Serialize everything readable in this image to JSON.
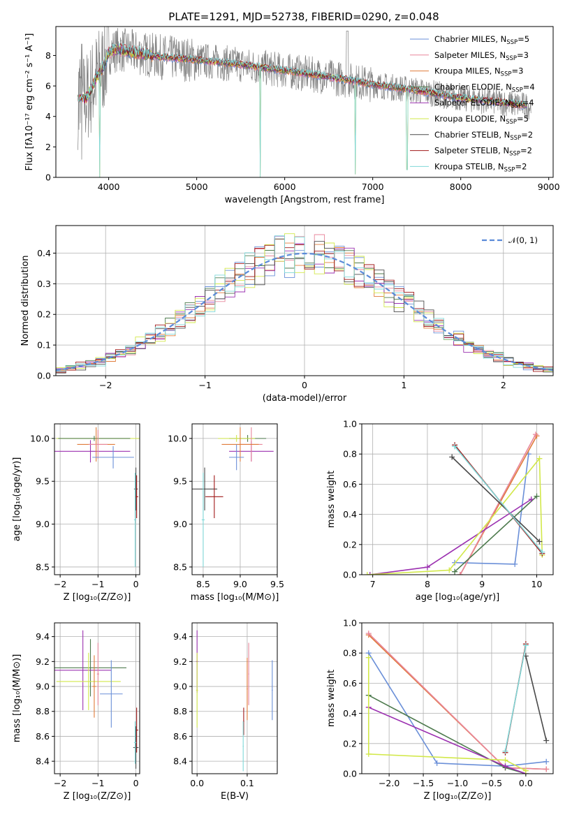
{
  "figure_title": "PLATE=1291, MJD=52738, FIBERID=0290, z=0.048",
  "colors": {
    "Chabrier MILES": "#6a8fd8",
    "Salpeter MILES": "#e8869b",
    "Kroupa MILES": "#e07b39",
    "Chabrier ELODIE": "#4d7a4d",
    "Salpeter ELODIE": "#9b30b0",
    "Kroupa ELODIE": "#d2e84a",
    "Chabrier STELIB": "#4a4a4a",
    "Salpeter STELIB": "#a01818",
    "Kroupa STELIB": "#7fd8d8",
    "data": "#808080",
    "normal_curve": "#5b8bd9"
  },
  "chart_data": [
    {
      "id": "spectrum",
      "type": "line",
      "title": "PLATE=1291, MJD=52738, FIBERID=0290, z=0.048",
      "xlabel": "wavelength [Angstrom, rest frame]",
      "ylabel": "Flux [fλ10⁻¹⁷ erg cm⁻² s⁻¹ A⁻¹]",
      "xlim": [
        3400,
        9050
      ],
      "ylim": [
        0,
        9.9
      ],
      "xticks": [
        "4000",
        "5000",
        "6000",
        "7000",
        "8000",
        "9000"
      ],
      "yticks": [
        "0",
        "2",
        "4",
        "6",
        "8"
      ],
      "grid": false,
      "legend": "upper right",
      "data_range": [
        3650,
        8800
      ],
      "model_range": [
        3650,
        8750
      ],
      "legend_entries": [
        {
          "name": "Chabrier MILES, N",
          "sub": "SSP",
          "suffix": "=5"
        },
        {
          "name": "Salpeter MILES, N",
          "sub": "SSP",
          "suffix": "=3"
        },
        {
          "name": "Kroupa MILES, N",
          "sub": "SSP",
          "suffix": "=3"
        },
        {
          "name": "Chabrier ELODIE, N",
          "sub": "SSP",
          "suffix": "=4"
        },
        {
          "name": "Salpeter ELODIE, N",
          "sub": "SSP",
          "suffix": "=4"
        },
        {
          "name": "Kroupa ELODIE, N",
          "sub": "SSP",
          "suffix": "=5"
        },
        {
          "name": "Chabrier STELIB, N",
          "sub": "SSP",
          "suffix": "=2"
        },
        {
          "name": "Salpeter STELIB, N",
          "sub": "SSP",
          "suffix": "=2"
        },
        {
          "name": "Kroupa STELIB, N",
          "sub": "SSP",
          "suffix": "=2"
        }
      ],
      "continuum": [
        [
          3650,
          5.0
        ],
        [
          3750,
          5.2
        ],
        [
          3850,
          6.4
        ],
        [
          3950,
          7.4
        ],
        [
          4000,
          8.2
        ],
        [
          4100,
          8.4
        ],
        [
          4300,
          8.2
        ],
        [
          4600,
          7.9
        ],
        [
          5000,
          7.7
        ],
        [
          5500,
          7.4
        ],
        [
          6000,
          7.0
        ],
        [
          6500,
          6.6
        ],
        [
          7000,
          6.1
        ],
        [
          7500,
          5.7
        ],
        [
          8000,
          5.2
        ],
        [
          8500,
          4.9
        ],
        [
          8750,
          4.7
        ]
      ],
      "model_dips": [
        {
          "x": 3900,
          "to": 0.0
        },
        {
          "x": 5725,
          "to": 0.0
        },
        {
          "x": 6800,
          "to": 0.2
        },
        {
          "x": 7390,
          "to": 0.5
        }
      ]
    },
    {
      "id": "residuals",
      "type": "step",
      "xlabel": "(data-model)/error",
      "ylabel": "Normed distribution",
      "xlim": [
        -2.5,
        2.5
      ],
      "ylim": [
        0,
        0.49
      ],
      "xticks": [
        "−2",
        "−1",
        "0",
        "1",
        "2"
      ],
      "yticks": [
        "0.0",
        "0.1",
        "0.2",
        "0.3",
        "0.4"
      ],
      "grid": true,
      "legend": "upper right",
      "legend_label": "𝒩(0, 1)",
      "bin_width": 0.1
    },
    {
      "id": "age-vs-Z",
      "type": "errorbar",
      "xlabel": "Z [log₁₀(Z/Z⊙)]",
      "ylabel": "age  [log₁₀(age/yr)]",
      "xlim": [
        -2.15,
        0.1
      ],
      "ylim": [
        8.41,
        10.17
      ],
      "xticks": [
        "−2",
        "−1",
        "0"
      ],
      "yticks": [
        "8.5",
        "9.0",
        "9.5",
        "10.0"
      ],
      "grid": true,
      "points": [
        {
          "model": "Kroupa ELODIE",
          "x": -1.0,
          "xerr": 1.1,
          "y": 10.0,
          "yerr": 0.03
        },
        {
          "model": "Chabrier ELODIE",
          "x": -1.1,
          "xerr": 0.95,
          "y": 10.0,
          "yerr": 0.03
        },
        {
          "model": "Salpeter ELODIE",
          "x": -1.2,
          "xerr": 1.05,
          "y": 9.85,
          "yerr": 0.13
        },
        {
          "model": "Kroupa MILES",
          "x": -1.05,
          "xerr": 0.5,
          "y": 9.93,
          "yerr": 0.2
        },
        {
          "model": "Salpeter MILES",
          "x": -1.0,
          "xerr": 0.25,
          "y": 9.93,
          "yerr": 0.17
        },
        {
          "model": "Chabrier MILES",
          "x": -0.6,
          "xerr": 0.55,
          "y": 9.78,
          "yerr": 0.13
        },
        {
          "model": "Chabrier STELIB",
          "x": 0.0,
          "xerr": 0.05,
          "y": 9.41,
          "yerr": 0.25
        },
        {
          "model": "Salpeter STELIB",
          "x": 0.02,
          "xerr": 0.04,
          "y": 9.32,
          "yerr": 0.25
        },
        {
          "model": "Kroupa STELIB",
          "x": -0.02,
          "xerr": 0.03,
          "y": 9.05,
          "yerr": 0.55
        }
      ]
    },
    {
      "id": "age-vs-mass",
      "type": "errorbar",
      "xlabel": "mass [log₁₀(M/M⊙)]",
      "ylabel": "",
      "xlim": [
        8.35,
        9.5
      ],
      "ylim": [
        8.41,
        10.17
      ],
      "xticks": [
        "8.5",
        "9.0",
        "9.5"
      ],
      "yticks": [
        "8.5",
        "9.0",
        "9.5",
        "10.0"
      ],
      "grid": true,
      "points": [
        {
          "model": "Chabrier ELODIE",
          "x": 9.1,
          "xerr": 0.25,
          "y": 10.0,
          "yerr": 0.04
        },
        {
          "model": "Kroupa ELODIE",
          "x": 8.95,
          "xerr": 0.25,
          "y": 10.0,
          "yerr": 0.04
        },
        {
          "model": "Salpeter ELODIE",
          "x": 9.15,
          "xerr": 0.3,
          "y": 9.85,
          "yerr": 0.12
        },
        {
          "model": "Salpeter MILES",
          "x": 9.15,
          "xerr": 0.15,
          "y": 9.93,
          "yerr": 0.2
        },
        {
          "model": "Kroupa MILES",
          "x": 9.0,
          "xerr": 0.25,
          "y": 9.93,
          "yerr": 0.2
        },
        {
          "model": "Chabrier MILES",
          "x": 8.95,
          "xerr": 0.1,
          "y": 9.78,
          "yerr": 0.15
        },
        {
          "model": "Chabrier STELIB",
          "x": 8.52,
          "xerr": 0.17,
          "y": 9.41,
          "yerr": 0.25
        },
        {
          "model": "Salpeter STELIB",
          "x": 8.65,
          "xerr": 0.12,
          "y": 9.32,
          "yerr": 0.25
        },
        {
          "model": "Kroupa STELIB",
          "x": 8.5,
          "xerr": 0.02,
          "y": 9.05,
          "yerr": 0.55
        }
      ]
    },
    {
      "id": "weight-vs-age",
      "type": "line",
      "xlabel": "age  [log₁₀(age/yr)]",
      "ylabel": "mass weight",
      "xlim": [
        6.8,
        10.3
      ],
      "ylim": [
        0,
        1.0
      ],
      "xticks": [
        "7",
        "8",
        "9",
        "10"
      ],
      "yticks": [
        "0.0",
        "0.2",
        "0.4",
        "0.6",
        "0.8",
        "1.0"
      ],
      "grid": true,
      "series": [
        {
          "model": "Chabrier MILES",
          "points": [
            [
              8.5,
              0.08
            ],
            [
              9.6,
              0.07
            ],
            [
              9.85,
              0.8
            ]
          ]
        },
        {
          "model": "Kroupa MILES",
          "points": [
            [
              8.6,
              0.0
            ],
            [
              10.0,
              0.92
            ]
          ]
        },
        {
          "model": "Salpeter MILES",
          "points": [
            [
              8.6,
              0.0
            ],
            [
              9.98,
              0.93
            ]
          ]
        },
        {
          "model": "Chabrier ELODIE",
          "points": [
            [
              8.5,
              0.02
            ],
            [
              10.0,
              0.52
            ]
          ]
        },
        {
          "model": "Salpeter ELODIE",
          "points": [
            [
              6.95,
              0.0
            ],
            [
              8.0,
              0.05
            ],
            [
              9.9,
              0.5
            ]
          ]
        },
        {
          "model": "Kroupa ELODIE",
          "points": [
            [
              6.9,
              0.0
            ],
            [
              8.4,
              0.03
            ],
            [
              10.05,
              0.77
            ],
            [
              10.1,
              0.13
            ]
          ]
        },
        {
          "model": "Chabrier STELIB",
          "points": [
            [
              8.45,
              0.78
            ],
            [
              10.05,
              0.22
            ]
          ]
        },
        {
          "model": "Salpeter STELIB",
          "points": [
            [
              8.5,
              0.86
            ],
            [
              10.1,
              0.14
            ]
          ]
        },
        {
          "model": "Kroupa STELIB",
          "points": [
            [
              8.5,
              0.85
            ],
            [
              10.1,
              0.15
            ]
          ]
        }
      ]
    },
    {
      "id": "mass-vs-Z",
      "type": "errorbar",
      "xlabel": "Z [log₁₀(Z/Z⊙)]",
      "ylabel": "mass [log₁₀(M/M⊙)]",
      "xlim": [
        -2.15,
        0.1
      ],
      "ylim": [
        8.3,
        9.51
      ],
      "xticks": [
        "−2",
        "−1",
        "0"
      ],
      "yticks": [
        "8.4",
        "8.6",
        "8.8",
        "9.0",
        "9.2",
        "9.4"
      ],
      "grid": true,
      "points": [
        {
          "model": "Chabrier ELODIE",
          "x": -1.2,
          "xerr": 0.95,
          "y": 9.15,
          "yerr": 0.23
        },
        {
          "model": "Salpeter ELODIE",
          "x": -1.4,
          "xerr": 0.75,
          "y": 9.13,
          "yerr": 0.32
        },
        {
          "model": "Kroupa ELODIE",
          "x": -1.25,
          "xerr": 0.85,
          "y": 9.04,
          "yerr": 0.23
        },
        {
          "model": "Salpeter MILES",
          "x": -1.0,
          "xerr": 0.03,
          "y": 9.1,
          "yerr": 0.25
        },
        {
          "model": "Kroupa MILES",
          "x": -1.1,
          "xerr": 0.05,
          "y": 9.0,
          "yerr": 0.25
        },
        {
          "model": "Chabrier MILES",
          "x": -0.65,
          "xerr": 0.3,
          "y": 8.94,
          "yerr": 0.27
        },
        {
          "model": "Salpeter STELIB",
          "x": 0.02,
          "xerr": 0.04,
          "y": 8.65,
          "yerr": 0.18
        },
        {
          "model": "Chabrier STELIB",
          "x": 0.0,
          "xerr": 0.07,
          "y": 8.51,
          "yerr": 0.17
        },
        {
          "model": "Kroupa STELIB",
          "x": -0.02,
          "xerr": 0.03,
          "y": 8.55,
          "yerr": 0.17
        }
      ]
    },
    {
      "id": "mass-vs-EBV",
      "type": "errorbar",
      "xlabel": "E(B-V)",
      "ylabel": "",
      "xlim": [
        -0.01,
        0.16
      ],
      "ylim": [
        8.3,
        9.51
      ],
      "xticks": [
        "0.0",
        "0.1"
      ],
      "yticks": [
        "8.4",
        "8.6",
        "8.8",
        "9.0",
        "9.2",
        "9.4"
      ],
      "grid": true,
      "points": [
        {
          "model": "Salpeter ELODIE",
          "x": 0.0,
          "xerr": 0.002,
          "y": 9.2,
          "yerr": 0.25
        },
        {
          "model": "Kroupa ELODIE",
          "x": 0.0,
          "xerr": 0.002,
          "y": 8.97,
          "yerr": 0.3
        },
        {
          "model": "Salpeter MILES",
          "x": 0.103,
          "xerr": 0.001,
          "y": 9.1,
          "yerr": 0.25
        },
        {
          "model": "Kroupa MILES",
          "x": 0.1,
          "xerr": 0.001,
          "y": 8.98,
          "yerr": 0.25
        },
        {
          "model": "Chabrier MILES",
          "x": 0.15,
          "xerr": 0.001,
          "y": 8.97,
          "yerr": 0.24
        },
        {
          "model": "Salpeter STELIB",
          "x": 0.093,
          "xerr": 0.001,
          "y": 8.72,
          "yerr": 0.11
        },
        {
          "model": "Kroupa STELIB",
          "x": 0.092,
          "xerr": 0.001,
          "y": 8.52,
          "yerr": 0.2
        }
      ]
    },
    {
      "id": "weight-vs-Z",
      "type": "line",
      "xlabel": "Z [log₁₀(Z/Z⊙)]",
      "ylabel": "mass weight",
      "xlim": [
        -2.4,
        0.4
      ],
      "ylim": [
        0,
        1.0
      ],
      "xticks": [
        "−2.0",
        "−1.5",
        "−1.0",
        "−0.5",
        "0.0"
      ],
      "yticks": [
        "0.0",
        "0.2",
        "0.4",
        "0.6",
        "0.8",
        "1.0"
      ],
      "grid": true,
      "series": [
        {
          "model": "Chabrier MILES",
          "points": [
            [
              -2.3,
              0.8
            ],
            [
              -1.3,
              0.07
            ],
            [
              -0.3,
              0.05
            ],
            [
              0.3,
              0.08
            ]
          ]
        },
        {
          "model": "Kroupa MILES",
          "points": [
            [
              -2.3,
              0.92
            ],
            [
              -0.3,
              0.04
            ],
            [
              0.3,
              0.03
            ]
          ]
        },
        {
          "model": "Salpeter MILES",
          "points": [
            [
              -2.3,
              0.93
            ],
            [
              -0.3,
              0.04
            ],
            [
              0.3,
              0.03
            ]
          ]
        },
        {
          "model": "Chabrier ELODIE",
          "points": [
            [
              -2.3,
              0.52
            ],
            [
              -0.3,
              0.04
            ],
            [
              0.0,
              0.0
            ]
          ]
        },
        {
          "model": "Salpeter ELODIE",
          "points": [
            [
              -2.3,
              0.44
            ],
            [
              -0.3,
              0.05
            ],
            [
              0.0,
              0.0
            ]
          ]
        },
        {
          "model": "Kroupa ELODIE",
          "points": [
            [
              -2.3,
              0.77
            ],
            [
              -2.3,
              0.13
            ],
            [
              -0.3,
              0.09
            ],
            [
              0.0,
              0.02
            ]
          ]
        },
        {
          "model": "Chabrier STELIB",
          "points": [
            [
              0.0,
              0.78
            ],
            [
              0.3,
              0.22
            ]
          ]
        },
        {
          "model": "Salpeter STELIB",
          "points": [
            [
              -0.3,
              0.14
            ],
            [
              0.0,
              0.86
            ]
          ]
        },
        {
          "model": "Kroupa STELIB",
          "points": [
            [
              -0.3,
              0.15
            ],
            [
              0.0,
              0.85
            ]
          ]
        }
      ]
    }
  ]
}
